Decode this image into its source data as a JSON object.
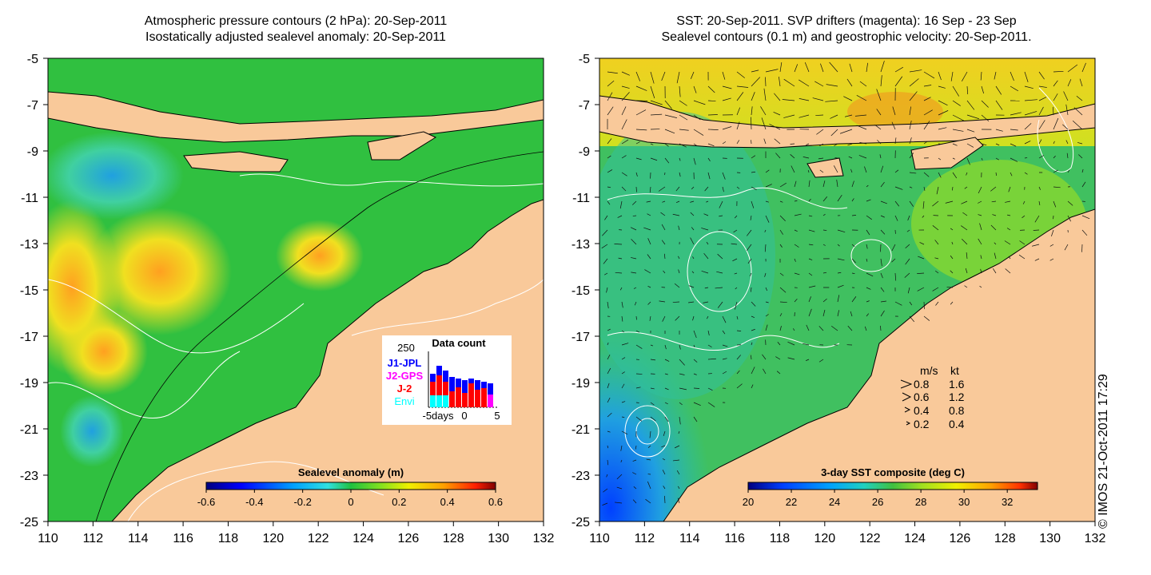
{
  "left_panel": {
    "title_line1": "Atmospheric pressure contours (2 hPa): 20-Sep-2011",
    "title_line2": "Isostatically adjusted sealevel anomaly: 20-Sep-2011",
    "colorbar_label": "Sealevel anomaly (m)",
    "colorbar_ticks": [
      "-0.6",
      "-0.4",
      "-0.2",
      "0",
      "0.2",
      "0.4",
      "0.6"
    ],
    "data_count": {
      "title": "Data count",
      "y_max_label": "250",
      "missions": [
        {
          "name": "J1-JPL",
          "color": "#0000ff"
        },
        {
          "name": "J2-GPS",
          "color": "#ff00ff"
        },
        {
          "name": "J-2",
          "color": "#ff0000"
        },
        {
          "name": "Envi",
          "color": "#00ffff"
        }
      ],
      "x_axis_label": "-5days",
      "x_ticks": [
        "0",
        "5"
      ]
    }
  },
  "right_panel": {
    "title_line1": "SST: 20-Sep-2011. SVP drifters (magenta): 16 Sep - 23 Sep",
    "title_line2": "Sealevel contours (0.1 m) and geostrophic velocity: 20-Sep-2011.",
    "colorbar_label": "3-day SST composite (deg C)",
    "colorbar_ticks": [
      "20",
      "22",
      "24",
      "26",
      "28",
      "30",
      "32"
    ],
    "velocity_legend": {
      "header_ms": "m/s",
      "header_kt": "kt",
      "rows": [
        {
          "ms": "0.8",
          "kt": "1.6"
        },
        {
          "ms": "0.6",
          "kt": "1.2"
        },
        {
          "ms": "0.4",
          "kt": "0.8"
        },
        {
          "ms": "0.2",
          "kt": "0.4"
        }
      ]
    }
  },
  "axes": {
    "x_ticks": [
      "110",
      "112",
      "114",
      "116",
      "118",
      "120",
      "122",
      "124",
      "126",
      "128",
      "130",
      "132"
    ],
    "y_ticks": [
      "-5",
      "-7",
      "-9",
      "-11",
      "-13",
      "-15",
      "-17",
      "-19",
      "-21",
      "-23",
      "-25"
    ]
  },
  "copyright": "© IMOS 21-Oct-2011 17:29",
  "colors": {
    "land": "#f9c99a",
    "sla_ramp": [
      "#00007f",
      "#0000ff",
      "#00a0ff",
      "#30e0e0",
      "#20c040",
      "#80e020",
      "#f0f000",
      "#ffa000",
      "#ff2000",
      "#7f0000"
    ],
    "sst_ramp": [
      "#00007f",
      "#0040ff",
      "#00a0ff",
      "#20d0c0",
      "#40c040",
      "#a0e020",
      "#f0f000",
      "#ffa000",
      "#ff3000",
      "#7f0000"
    ]
  }
}
